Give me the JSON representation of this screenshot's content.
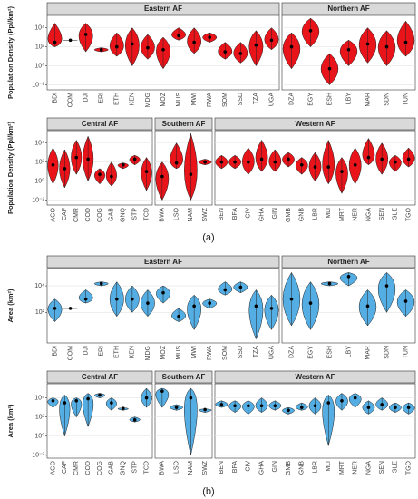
{
  "captions": [
    "(a)",
    "(b)"
  ],
  "chart_data": [
    {
      "type": "violin",
      "title": "Eastern AF",
      "color": "#e8141a",
      "log_scale": true,
      "grid": true,
      "ylabel": "Population Density (Ppl/km²)",
      "ylim": [
        0.003,
        200000
      ],
      "yticks": [
        {
          "value": 0.01,
          "label": "10⁻²"
        },
        {
          "value": 1,
          "label": "10⁰"
        },
        {
          "value": 100,
          "label": "10²"
        },
        {
          "value": 10000,
          "label": "10⁴"
        }
      ],
      "categories": [
        "BDI",
        "COM",
        "DJI",
        "ERI",
        "ETH",
        "KEN",
        "MDG",
        "MOZ",
        "MUS",
        "MWI",
        "RWA",
        "SOM",
        "SSD",
        "TZA",
        "UGA"
      ],
      "mins": [
        100,
        500,
        30,
        30,
        10,
        1,
        5,
        0.5,
        500,
        20,
        300,
        5,
        2,
        1,
        50
      ],
      "values": [
        300,
        500,
        2000,
        50,
        100,
        200,
        80,
        50,
        1500,
        300,
        1000,
        30,
        20,
        150,
        500
      ],
      "maxs": [
        30000,
        500,
        30000,
        80,
        3000,
        10000,
        2000,
        1000,
        10000,
        10000,
        3000,
        300,
        300,
        5000,
        10000
      ]
    },
    {
      "type": "violin",
      "title": "Northern AF",
      "color": "#e8141a",
      "log_scale": true,
      "ylim": [
        0.003,
        200000
      ],
      "categories": [
        "DZA",
        "EGY",
        "ESH",
        "LBY",
        "MAR",
        "SDN",
        "TUN"
      ],
      "mins": [
        0.5,
        100,
        0.01,
        1,
        2,
        1,
        10
      ],
      "values": [
        100,
        5000,
        0.5,
        50,
        200,
        100,
        300
      ],
      "maxs": [
        3000,
        100000,
        20,
        500,
        10000,
        5000,
        50000
      ]
    },
    {
      "type": "violin",
      "title": "Central AF",
      "color": "#e8141a",
      "log_scale": true,
      "grid": true,
      "ylabel": "Population Density (Ppl/km²)",
      "ylim": [
        0.003,
        200000
      ],
      "yticks": [
        {
          "value": 0.01,
          "label": "10⁻²"
        },
        {
          "value": 1,
          "label": "10⁰"
        },
        {
          "value": 100,
          "label": "10²"
        },
        {
          "value": 10000,
          "label": "10⁴"
        }
      ],
      "categories": [
        "AGO",
        "CAF",
        "CMR",
        "COD",
        "COG",
        "GAB",
        "GNQ",
        "STP",
        "TCD"
      ],
      "mins": [
        0.5,
        0.2,
        5,
        1,
        0.5,
        0.3,
        20,
        50,
        0.1
      ],
      "values": [
        50,
        20,
        300,
        200,
        5,
        3,
        50,
        200,
        10
      ],
      "maxs": [
        3000,
        2000,
        20000,
        50000,
        20,
        100,
        80,
        500,
        300
      ]
    },
    {
      "type": "violin",
      "title": "Southern AF",
      "color": "#e8141a",
      "log_scale": true,
      "ylim": [
        0.003,
        200000
      ],
      "categories": [
        "BWA",
        "LSO",
        "NAM",
        "SWZ"
      ],
      "mins": [
        0.01,
        20,
        0.01,
        50
      ],
      "values": [
        3,
        80,
        5,
        100
      ],
      "maxs": [
        100,
        10000,
        100000,
        200
      ]
    },
    {
      "type": "violin",
      "title": "Western AF",
      "color": "#e8141a",
      "log_scale": true,
      "ylim": [
        0.003,
        200000
      ],
      "categories": [
        "BEN",
        "BFA",
        "CIV",
        "GHA",
        "GIN",
        "GMB",
        "GNB",
        "LBR",
        "MLI",
        "MRT",
        "NER",
        "NGA",
        "SEN",
        "SLE",
        "TGO"
      ],
      "mins": [
        20,
        20,
        5,
        10,
        10,
        30,
        5,
        1,
        0.5,
        0.05,
        0.5,
        50,
        5,
        10,
        30
      ],
      "values": [
        100,
        100,
        100,
        200,
        100,
        200,
        50,
        30,
        30,
        10,
        50,
        300,
        200,
        100,
        200
      ],
      "maxs": [
        500,
        500,
        3000,
        20000,
        2000,
        1000,
        300,
        1000,
        20000,
        300,
        3000,
        30000,
        10000,
        500,
        3000
      ]
    },
    {
      "type": "violin",
      "title": "Eastern AF",
      "color": "#55aee3",
      "log_scale": true,
      "grid": true,
      "ylabel": "Area (km²)",
      "ylim": [
        0.5,
        200000
      ],
      "yticks": [
        {
          "value": 100,
          "label": "10²"
        },
        {
          "value": 10000,
          "label": "10⁴"
        }
      ],
      "categories": [
        "BDI",
        "COM",
        "DJI",
        "ERI",
        "ETH",
        "KEN",
        "MDG",
        "MOZ",
        "MUS",
        "MWI",
        "RWA",
        "SOM",
        "SSD",
        "TZA",
        "UGA"
      ],
      "mins": [
        20,
        200,
        500,
        10000,
        50,
        100,
        50,
        500,
        20,
        5,
        200,
        2000,
        3000,
        1,
        5
      ],
      "values": [
        200,
        200,
        1000,
        15000,
        1000,
        1000,
        500,
        3000,
        50,
        300,
        500,
        5000,
        8000,
        300,
        200
      ],
      "maxs": [
        1000,
        200,
        5000,
        20000,
        20000,
        10000,
        5000,
        10000,
        200,
        2000,
        1000,
        20000,
        20000,
        5000,
        2000
      ]
    },
    {
      "type": "violin",
      "title": "Northern AF",
      "color": "#55aee3",
      "log_scale": true,
      "ylim": [
        0.5,
        200000
      ],
      "categories": [
        "DZA",
        "EGY",
        "ESH",
        "LBY",
        "MAR",
        "SDN",
        "TUN"
      ],
      "mins": [
        10,
        5,
        10000,
        10000,
        10,
        100,
        50
      ],
      "values": [
        1000,
        500,
        15000,
        50000,
        300,
        10000,
        700
      ],
      "maxs": [
        100000,
        20000,
        20000,
        100000,
        5000,
        100000,
        5000
      ]
    },
    {
      "type": "violin",
      "title": "Central AF",
      "color": "#55aee3",
      "log_scale": true,
      "grid": true,
      "ylabel": "Area (km²)",
      "ylim": [
        0.005,
        300000
      ],
      "yticks": [
        {
          "value": 0.01,
          "label": "10⁻²"
        },
        {
          "value": 1,
          "label": "10⁰"
        },
        {
          "value": 100,
          "label": "10²"
        },
        {
          "value": 10000,
          "label": "10⁴"
        }
      ],
      "categories": [
        "AGO",
        "CAF",
        "CMR",
        "COD",
        "COG",
        "GAB",
        "GNQ",
        "STP",
        "TCD"
      ],
      "mins": [
        1000,
        1,
        100,
        10,
        10000,
        500,
        500,
        30,
        1000
      ],
      "values": [
        5000,
        3000,
        5000,
        8000,
        20000,
        3000,
        800,
        50,
        10000
      ],
      "maxs": [
        10000,
        20000,
        10000,
        30000,
        30000,
        10000,
        900,
        100,
        100000
      ]
    },
    {
      "type": "violin",
      "title": "Southern AF",
      "color": "#55aee3",
      "log_scale": true,
      "ylim": [
        0.005,
        300000
      ],
      "categories": [
        "BWA",
        "LSO",
        "NAM",
        "SWZ"
      ],
      "mins": [
        1000,
        500,
        0.01,
        300
      ],
      "values": [
        50000,
        1000,
        10000,
        600
      ],
      "maxs": [
        100000,
        2000,
        100000,
        700
      ]
    },
    {
      "type": "violin",
      "title": "Western AF",
      "color": "#55aee3",
      "log_scale": true,
      "ylim": [
        0.005,
        300000
      ],
      "categories": [
        "BEN",
        "BFA",
        "CIV",
        "GHA",
        "GIN",
        "GMB",
        "GNB",
        "LBR",
        "MLI",
        "MRT",
        "NER",
        "NGA",
        "SEN",
        "SLE",
        "TGO"
      ],
      "mins": [
        1000,
        300,
        200,
        300,
        500,
        200,
        500,
        200,
        0.1,
        500,
        1000,
        200,
        500,
        300,
        200
      ],
      "values": [
        2000,
        1500,
        1500,
        1500,
        1500,
        500,
        1000,
        1500,
        3000,
        5000,
        10000,
        1000,
        2000,
        1000,
        1000
      ],
      "maxs": [
        5000,
        5000,
        5000,
        10000,
        5000,
        1000,
        3000,
        10000,
        20000,
        30000,
        30000,
        5000,
        10000,
        3000,
        3000
      ]
    }
  ]
}
